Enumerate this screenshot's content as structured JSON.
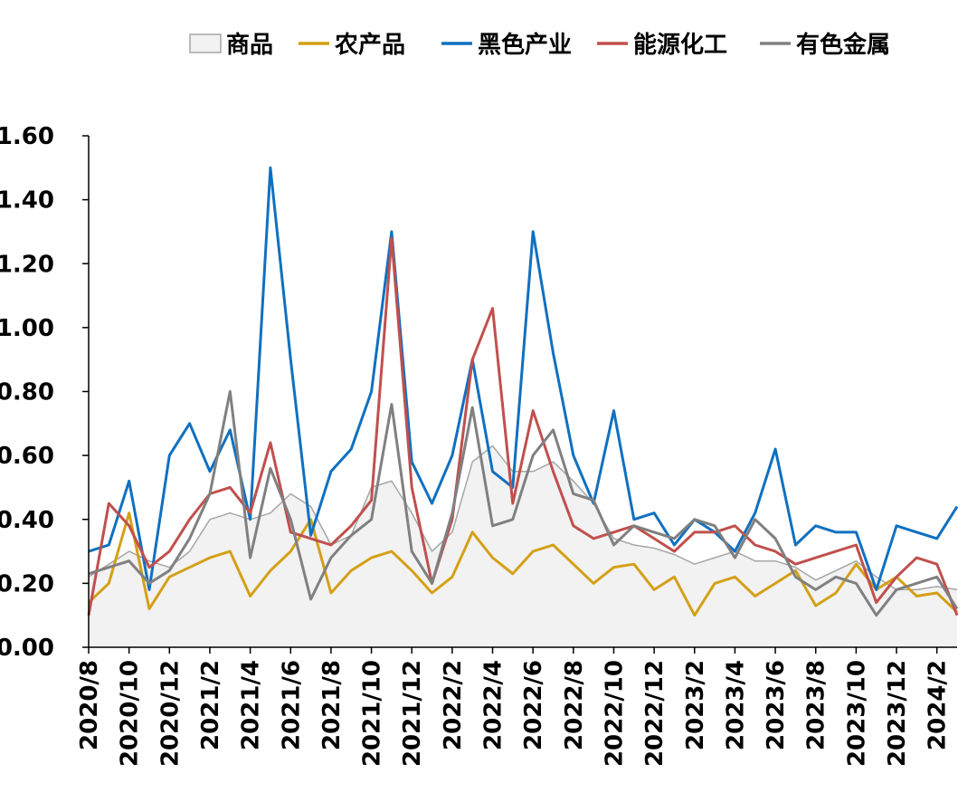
{
  "chart_data": {
    "type": "line",
    "title": "",
    "xlabel": "",
    "ylabel": "",
    "ylim": [
      0,
      1.6
    ],
    "yticks": [
      "0.00",
      "0.20",
      "0.40",
      "0.60",
      "0.80",
      "1.00",
      "1.20",
      "1.40",
      "1.60"
    ],
    "xticks": [
      "2020/8",
      "2020/10",
      "2020/12",
      "2021/2",
      "2021/4",
      "2021/6",
      "2021/8",
      "2021/10",
      "2021/12",
      "2022/2",
      "2022/4",
      "2022/6",
      "2022/8",
      "2022/10",
      "2022/12",
      "2023/2",
      "2023/4",
      "2023/6",
      "2023/8",
      "2023/10",
      "2023/12",
      "2024/2"
    ],
    "x_months": [
      "2020/8",
      "2020/9",
      "2020/10",
      "2020/11",
      "2020/12",
      "2021/1",
      "2021/2",
      "2021/3",
      "2021/4",
      "2021/5",
      "2021/6",
      "2021/7",
      "2021/8",
      "2021/9",
      "2021/10",
      "2021/11",
      "2021/12",
      "2022/1",
      "2022/2",
      "2022/3",
      "2022/4",
      "2022/5",
      "2022/6",
      "2022/7",
      "2022/8",
      "2022/9",
      "2022/10",
      "2022/11",
      "2022/12",
      "2023/1",
      "2023/2",
      "2023/3",
      "2023/4",
      "2023/5",
      "2023/6",
      "2023/7",
      "2023/8",
      "2023/9",
      "2023/10",
      "2023/11",
      "2023/12",
      "2024/1",
      "2024/2",
      "2024/3"
    ],
    "legend_position": "top",
    "grid": false,
    "series": [
      {
        "name": "商品",
        "kind": "area",
        "color": "#a6a6a6",
        "fill": "#f2f2f2",
        "values": [
          0.22,
          0.26,
          0.3,
          0.27,
          0.25,
          0.3,
          0.4,
          0.42,
          0.4,
          0.42,
          0.48,
          0.44,
          0.32,
          0.35,
          0.5,
          0.52,
          0.42,
          0.3,
          0.36,
          0.58,
          0.63,
          0.55,
          0.55,
          0.58,
          0.52,
          0.45,
          0.34,
          0.32,
          0.31,
          0.29,
          0.26,
          0.28,
          0.3,
          0.27,
          0.27,
          0.25,
          0.21,
          0.24,
          0.27,
          0.22,
          0.18,
          0.18,
          0.19,
          0.18
        ]
      },
      {
        "name": "农产品",
        "kind": "line",
        "color": "#d4a017",
        "values": [
          0.14,
          0.2,
          0.42,
          0.12,
          0.22,
          0.25,
          0.28,
          0.3,
          0.16,
          0.24,
          0.3,
          0.4,
          0.17,
          0.24,
          0.28,
          0.3,
          0.24,
          0.17,
          0.22,
          0.36,
          0.28,
          0.23,
          0.3,
          0.32,
          0.26,
          0.2,
          0.25,
          0.26,
          0.18,
          0.22,
          0.1,
          0.2,
          0.22,
          0.16,
          0.2,
          0.24,
          0.13,
          0.17,
          0.26,
          0.18,
          0.22,
          0.16,
          0.17,
          0.11
        ]
      },
      {
        "name": "黑色产业",
        "kind": "line",
        "color": "#1070c0",
        "values": [
          0.3,
          0.32,
          0.52,
          0.18,
          0.6,
          0.7,
          0.55,
          0.68,
          0.4,
          1.5,
          0.9,
          0.35,
          0.55,
          0.62,
          0.8,
          1.3,
          0.58,
          0.45,
          0.6,
          0.9,
          0.55,
          0.5,
          1.3,
          0.92,
          0.6,
          0.45,
          0.74,
          0.4,
          0.42,
          0.32,
          0.4,
          0.36,
          0.3,
          0.42,
          0.62,
          0.32,
          0.38,
          0.36,
          0.36,
          0.18,
          0.38,
          0.36,
          0.34,
          0.44
        ]
      },
      {
        "name": "能源化工",
        "kind": "line",
        "color": "#c0504d",
        "values": [
          0.1,
          0.45,
          0.38,
          0.25,
          0.3,
          0.4,
          0.48,
          0.5,
          0.42,
          0.64,
          0.36,
          0.34,
          0.32,
          0.38,
          0.46,
          1.28,
          0.5,
          0.2,
          0.4,
          0.9,
          1.06,
          0.45,
          0.74,
          0.55,
          0.38,
          0.34,
          0.36,
          0.38,
          0.34,
          0.3,
          0.36,
          0.36,
          0.38,
          0.32,
          0.3,
          0.26,
          0.28,
          0.3,
          0.32,
          0.14,
          0.22,
          0.28,
          0.26,
          0.1
        ]
      },
      {
        "name": "有色金属",
        "kind": "line",
        "color": "#808080",
        "values": [
          0.23,
          0.25,
          0.27,
          0.2,
          0.24,
          0.34,
          0.48,
          0.8,
          0.28,
          0.56,
          0.4,
          0.15,
          0.28,
          0.35,
          0.4,
          0.76,
          0.3,
          0.2,
          0.42,
          0.75,
          0.38,
          0.4,
          0.6,
          0.68,
          0.48,
          0.46,
          0.32,
          0.38,
          0.36,
          0.34,
          0.4,
          0.38,
          0.28,
          0.4,
          0.34,
          0.22,
          0.18,
          0.22,
          0.2,
          0.1,
          0.18,
          0.2,
          0.22,
          0.12
        ]
      }
    ]
  }
}
